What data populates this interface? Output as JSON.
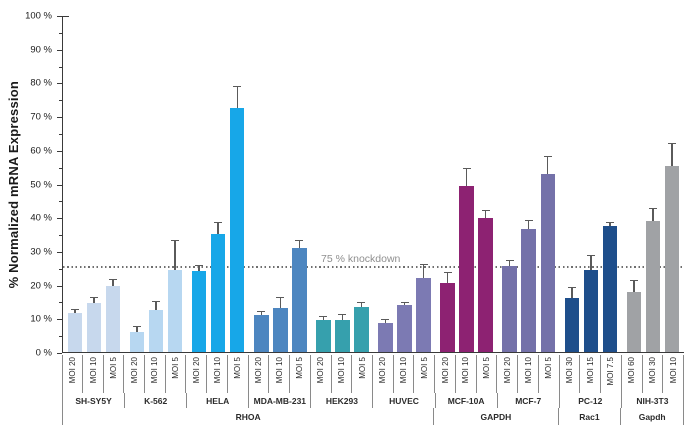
{
  "y_axis": {
    "label": "% Normalized mRNA Expression",
    "ticks": [
      "100 %",
      "90 %",
      "80 %",
      "70 %",
      "60 %",
      "50 %",
      "40 %",
      "30 %",
      "20 %",
      "10 %",
      "0 %"
    ]
  },
  "threshold": {
    "label": "75 % knockdown"
  },
  "chart_data": {
    "type": "bar",
    "title": "",
    "xlabel": "",
    "ylabel": "% Normalized mRNA Expression",
    "ylim": [
      0,
      100
    ],
    "y_tick_step": 10,
    "grid": false,
    "legend": false,
    "threshold_line": {
      "y": 25,
      "label": "75 % knockdown",
      "style": "dotted",
      "color": "#6e6e6e"
    },
    "error_bar_color": "#5a5a5a",
    "genes": [
      {
        "gene": "RHOA",
        "cell_lines": [
          {
            "name": "SH-SY5Y",
            "color": "#c7d8ed",
            "bars": [
              {
                "moi": "MOI 20",
                "value": 11.5,
                "error_top": 12.5
              },
              {
                "moi": "MOI 10",
                "value": 14.5,
                "error_top": 16
              },
              {
                "moi": "MOI 5",
                "value": 19.5,
                "error_top": 21.5
              }
            ]
          },
          {
            "name": "K-562",
            "color": "#b7d7f1",
            "bars": [
              {
                "moi": "MOI 20",
                "value": 6,
                "error_top": 7.5
              },
              {
                "moi": "MOI 10",
                "value": 12.5,
                "error_top": 15
              },
              {
                "moi": "MOI 5",
                "value": 24.5,
                "error_top": 33
              }
            ]
          },
          {
            "name": "HELA",
            "color": "#17a7e8",
            "bars": [
              {
                "moi": "MOI 20",
                "value": 24,
                "error_top": 25.5
              },
              {
                "moi": "MOI 10",
                "value": 35,
                "error_top": 38.5
              },
              {
                "moi": "MOI 5",
                "value": 72.5,
                "error_top": 79
              }
            ]
          },
          {
            "name": "MDA-MB-231",
            "color": "#4d86c0",
            "bars": [
              {
                "moi": "MOI 20",
                "value": 11,
                "error_top": 12
              },
              {
                "moi": "MOI 10",
                "value": 13,
                "error_top": 16
              },
              {
                "moi": "MOI 5",
                "value": 31,
                "error_top": 33
              }
            ]
          },
          {
            "name": "HEK293",
            "color": "#36a0ad",
            "bars": [
              {
                "moi": "MOI 20",
                "value": 9.5,
                "error_top": 10.5
              },
              {
                "moi": "MOI 10",
                "value": 9.5,
                "error_top": 11
              },
              {
                "moi": "MOI 5",
                "value": 13.5,
                "error_top": 14.5
              }
            ]
          },
          {
            "name": "HUVEC",
            "color": "#7c7ab3",
            "bars": [
              {
                "moi": "MOI 20",
                "value": 8.5,
                "error_top": 9.5
              },
              {
                "moi": "MOI 10",
                "value": 14,
                "error_top": 14.5
              },
              {
                "moi": "MOI 5",
                "value": 22,
                "error_top": 26
              }
            ]
          }
        ]
      },
      {
        "gene": "GAPDH",
        "cell_lines": [
          {
            "name": "MCF-10A",
            "color": "#8d2272",
            "bars": [
              {
                "moi": "MOI 20",
                "value": 20.5,
                "error_top": 23.5
              },
              {
                "moi": "MOI 10",
                "value": 49.5,
                "error_top": 54.5
              },
              {
                "moi": "MOI 5",
                "value": 40,
                "error_top": 42
              }
            ]
          },
          {
            "name": "MCF-7",
            "color": "#7471a9",
            "bars": [
              {
                "moi": "MOI 20",
                "value": 25.5,
                "error_top": 27
              },
              {
                "moi": "MOI 10",
                "value": 36.5,
                "error_top": 39
              },
              {
                "moi": "MOI 5",
                "value": 53,
                "error_top": 58
              }
            ]
          }
        ]
      },
      {
        "gene": "Rac1",
        "cell_lines": [
          {
            "name": "PC-12",
            "color": "#1e4e8b",
            "bars": [
              {
                "moi": "MOI 30",
                "value": 16,
                "error_top": 19
              },
              {
                "moi": "MOI 15",
                "value": 24.5,
                "error_top": 28.5
              },
              {
                "moi": "MOI 7.5",
                "value": 37.5,
                "error_top": 38.5
              }
            ]
          }
        ]
      },
      {
        "gene": "Gapdh",
        "cell_lines": [
          {
            "name": "NIH-3T3",
            "color": "#a0a2a5",
            "bars": [
              {
                "moi": "MOI 60",
                "value": 18,
                "error_top": 21
              },
              {
                "moi": "MOI 30",
                "value": 39,
                "error_top": 42.5
              },
              {
                "moi": "MOI 10",
                "value": 55.5,
                "error_top": 62
              }
            ]
          }
        ]
      }
    ]
  }
}
